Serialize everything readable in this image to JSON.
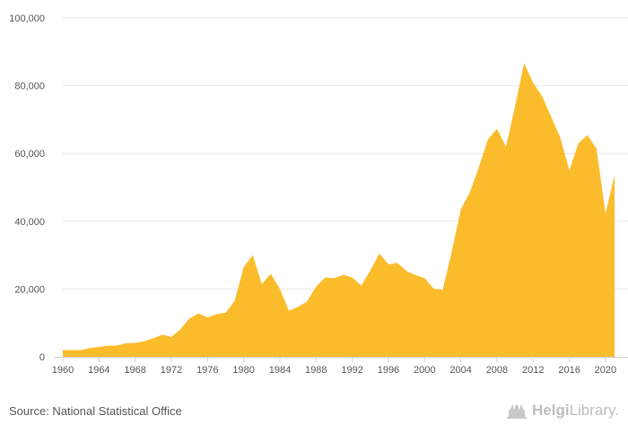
{
  "chart_data": {
    "type": "area",
    "x": [
      1960,
      1961,
      1962,
      1963,
      1964,
      1965,
      1966,
      1967,
      1968,
      1969,
      1970,
      1971,
      1972,
      1973,
      1974,
      1975,
      1976,
      1977,
      1978,
      1979,
      1980,
      1981,
      1982,
      1983,
      1984,
      1985,
      1986,
      1987,
      1988,
      1989,
      1990,
      1991,
      1992,
      1993,
      1994,
      1995,
      1996,
      1997,
      1998,
      1999,
      2000,
      2001,
      2002,
      2003,
      2004,
      2005,
      2006,
      2007,
      2008,
      2009,
      2010,
      2011,
      2012,
      2013,
      2014,
      2015,
      2016,
      2017,
      2018,
      2019,
      2020,
      2021
    ],
    "values": [
      2000,
      2000,
      2000,
      2600,
      2900,
      3300,
      3300,
      4000,
      4100,
      4600,
      5500,
      6500,
      5900,
      8100,
      11300,
      12800,
      11600,
      12600,
      13000,
      16500,
      26500,
      30000,
      21500,
      24500,
      20000,
      13600,
      14700,
      16300,
      20700,
      23400,
      23200,
      24200,
      23400,
      21000,
      25500,
      30500,
      27300,
      27700,
      25300,
      24100,
      23200,
      20100,
      19700,
      31000,
      43500,
      48500,
      56000,
      64200,
      67300,
      62000,
      73900,
      86600,
      80900,
      76900,
      70800,
      64700,
      55000,
      63000,
      65400,
      61400,
      42300,
      53600
    ],
    "xlim": [
      1960,
      2021
    ],
    "ylim": [
      0,
      100000
    ],
    "xticks": [
      "1960",
      "1964",
      "1968",
      "1972",
      "1976",
      "1980",
      "1984",
      "1988",
      "1992",
      "1996",
      "2000",
      "2004",
      "2008",
      "2012",
      "2016",
      "2020"
    ],
    "yticks": [
      "0",
      "20,000",
      "40,000",
      "60,000",
      "80,000",
      "100,000"
    ],
    "grid": true,
    "color": "#fbbc2c"
  },
  "source_text": "Source: National Statistical Office",
  "brand": {
    "bold": "Helgi",
    "normal": "Library."
  },
  "brand_icon": "library-building-icon",
  "colors": {
    "area": "#fbbc2c",
    "grid": "#e6e6e6",
    "axis": "#cccccc",
    "text": "#555555",
    "brand": "#bdbdbd"
  }
}
